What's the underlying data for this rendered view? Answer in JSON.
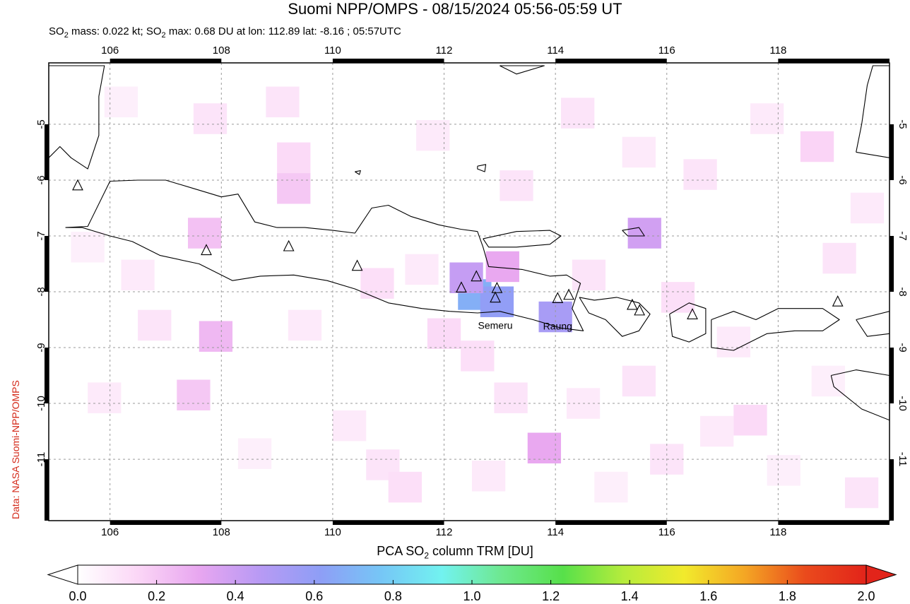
{
  "title": "Suomi NPP/OMPS - 08/15/2024 05:56-05:59 UT",
  "subtitle": {
    "part1": "SO",
    "sub1": "2",
    "part2": " mass: 0.022 kt; SO",
    "sub2": "2",
    "part3": " max: 0.68 DU at lon: 112.89 lat: -8.16 ; 05:57UTC"
  },
  "credit": "Data: NASA Suomi-NPP/OMPS",
  "map": {
    "lon_range": [
      104.9,
      120.0
    ],
    "lat_range": [
      -12.1,
      -3.9
    ],
    "lon_ticks": [
      "106",
      "108",
      "110",
      "112",
      "114",
      "116",
      "118"
    ],
    "lat_ticks": [
      "-5",
      "-6",
      "-7",
      "-8",
      "-9",
      "-10",
      "-11"
    ],
    "grid": true,
    "volcano_labels": [
      {
        "name": "Semeru",
        "lon": 112.92,
        "lat": -8.11
      },
      {
        "name": "Raung",
        "lon": 114.04,
        "lat": -8.12
      }
    ],
    "volcanoes": [
      {
        "lon": 105.42,
        "lat": -6.1
      },
      {
        "lon": 107.73,
        "lat": -7.26
      },
      {
        "lon": 109.21,
        "lat": -7.19
      },
      {
        "lon": 110.44,
        "lat": -7.54
      },
      {
        "lon": 112.31,
        "lat": -7.93
      },
      {
        "lon": 112.58,
        "lat": -7.73
      },
      {
        "lon": 112.95,
        "lat": -7.94
      },
      {
        "lon": 112.92,
        "lat": -8.11
      },
      {
        "lon": 114.04,
        "lat": -8.12
      },
      {
        "lon": 114.24,
        "lat": -8.06
      },
      {
        "lon": 115.38,
        "lat": -8.24
      },
      {
        "lon": 115.51,
        "lat": -8.34
      },
      {
        "lon": 116.46,
        "lat": -8.41
      },
      {
        "lon": 119.07,
        "lat": -8.18
      }
    ],
    "so2_pixels": [
      {
        "lon": 112.55,
        "lat": -8.05,
        "du": 0.68
      },
      {
        "lon": 112.95,
        "lat": -8.18,
        "du": 0.6
      },
      {
        "lon": 114.0,
        "lat": -8.45,
        "du": 0.52
      },
      {
        "lon": 112.4,
        "lat": -7.75,
        "du": 0.42
      },
      {
        "lon": 113.05,
        "lat": -7.55,
        "du": 0.3
      },
      {
        "lon": 115.6,
        "lat": -6.95,
        "du": 0.38
      },
      {
        "lon": 107.7,
        "lat": -6.95,
        "du": 0.22
      },
      {
        "lon": 109.3,
        "lat": -6.15,
        "du": 0.2
      },
      {
        "lon": 107.9,
        "lat": -8.8,
        "du": 0.25
      },
      {
        "lon": 107.5,
        "lat": -9.85,
        "du": 0.2
      },
      {
        "lon": 113.8,
        "lat": -10.8,
        "du": 0.3
      },
      {
        "lon": 112.0,
        "lat": -8.75,
        "du": 0.14
      },
      {
        "lon": 112.6,
        "lat": -9.15,
        "du": 0.12
      },
      {
        "lon": 113.2,
        "lat": -9.9,
        "du": 0.1
      },
      {
        "lon": 110.8,
        "lat": -7.85,
        "du": 0.12
      },
      {
        "lon": 111.6,
        "lat": -7.6,
        "du": 0.08
      },
      {
        "lon": 106.2,
        "lat": -4.6,
        "du": 0.06
      },
      {
        "lon": 107.8,
        "lat": -4.9,
        "du": 0.1
      },
      {
        "lon": 109.1,
        "lat": -4.6,
        "du": 0.1
      },
      {
        "lon": 109.3,
        "lat": -5.6,
        "du": 0.14
      },
      {
        "lon": 111.8,
        "lat": -5.2,
        "du": 0.08
      },
      {
        "lon": 113.3,
        "lat": -6.1,
        "du": 0.1
      },
      {
        "lon": 114.4,
        "lat": -4.8,
        "du": 0.1
      },
      {
        "lon": 115.5,
        "lat": -5.5,
        "du": 0.08
      },
      {
        "lon": 116.6,
        "lat": -5.9,
        "du": 0.1
      },
      {
        "lon": 117.8,
        "lat": -4.9,
        "du": 0.08
      },
      {
        "lon": 118.7,
        "lat": -5.4,
        "du": 0.16
      },
      {
        "lon": 119.1,
        "lat": -7.4,
        "du": 0.1
      },
      {
        "lon": 116.2,
        "lat": -8.1,
        "du": 0.12
      },
      {
        "lon": 114.6,
        "lat": -7.7,
        "du": 0.1
      },
      {
        "lon": 105.9,
        "lat": -9.9,
        "du": 0.08
      },
      {
        "lon": 106.8,
        "lat": -8.6,
        "du": 0.1
      },
      {
        "lon": 109.5,
        "lat": -8.6,
        "du": 0.08
      },
      {
        "lon": 110.3,
        "lat": -10.4,
        "du": 0.08
      },
      {
        "lon": 110.9,
        "lat": -11.1,
        "du": 0.1
      },
      {
        "lon": 111.3,
        "lat": -11.5,
        "du": 0.12
      },
      {
        "lon": 112.8,
        "lat": -11.3,
        "du": 0.08
      },
      {
        "lon": 114.5,
        "lat": -10.0,
        "du": 0.08
      },
      {
        "lon": 115.5,
        "lat": -9.6,
        "du": 0.1
      },
      {
        "lon": 116.9,
        "lat": -10.5,
        "du": 0.08
      },
      {
        "lon": 117.5,
        "lat": -10.3,
        "du": 0.14
      },
      {
        "lon": 118.1,
        "lat": -11.2,
        "du": 0.06
      },
      {
        "lon": 119.5,
        "lat": -11.6,
        "du": 0.1
      },
      {
        "lon": 118.9,
        "lat": -9.6,
        "du": 0.06
      },
      {
        "lon": 117.2,
        "lat": -8.9,
        "du": 0.08
      },
      {
        "lon": 119.6,
        "lat": -6.5,
        "du": 0.08
      },
      {
        "lon": 106.5,
        "lat": -7.7,
        "du": 0.08
      },
      {
        "lon": 105.6,
        "lat": -7.2,
        "du": 0.06
      },
      {
        "lon": 108.6,
        "lat": -10.9,
        "du": 0.06
      },
      {
        "lon": 115.0,
        "lat": -11.5,
        "du": 0.06
      },
      {
        "lon": 116.0,
        "lat": -11.0,
        "du": 0.1
      }
    ],
    "coastlines": {
      "java": [
        [
          105.2,
          -6.85
        ],
        [
          105.6,
          -6.83
        ],
        [
          106.0,
          -6.02
        ],
        [
          106.5,
          -6.0
        ],
        [
          107.0,
          -6.0
        ],
        [
          107.5,
          -6.15
        ],
        [
          108.0,
          -6.3
        ],
        [
          108.3,
          -6.25
        ],
        [
          108.6,
          -6.75
        ],
        [
          109.0,
          -6.85
        ],
        [
          109.5,
          -6.85
        ],
        [
          110.0,
          -6.9
        ],
        [
          110.4,
          -6.95
        ],
        [
          110.7,
          -6.5
        ],
        [
          111.0,
          -6.45
        ],
        [
          111.4,
          -6.65
        ],
        [
          111.9,
          -6.8
        ],
        [
          112.3,
          -6.88
        ],
        [
          112.6,
          -6.92
        ],
        [
          112.7,
          -7.2
        ],
        [
          112.8,
          -7.55
        ],
        [
          113.4,
          -7.6
        ],
        [
          113.9,
          -7.72
        ],
        [
          114.2,
          -7.7
        ],
        [
          114.45,
          -7.85
        ],
        [
          114.3,
          -8.3
        ],
        [
          114.5,
          -8.7
        ],
        [
          114.1,
          -8.65
        ],
        [
          113.6,
          -8.5
        ],
        [
          113.0,
          -8.35
        ],
        [
          112.6,
          -8.38
        ],
        [
          112.1,
          -8.35
        ],
        [
          111.6,
          -8.3
        ],
        [
          111.0,
          -8.2
        ],
        [
          110.4,
          -7.95
        ],
        [
          109.9,
          -7.8
        ],
        [
          109.3,
          -7.7
        ],
        [
          108.7,
          -7.72
        ],
        [
          108.2,
          -7.8
        ],
        [
          107.6,
          -7.5
        ],
        [
          106.9,
          -7.35
        ],
        [
          106.4,
          -7.1
        ],
        [
          106.0,
          -7.0
        ],
        [
          105.5,
          -6.85
        ],
        [
          105.2,
          -6.85
        ]
      ],
      "madura": [
        [
          112.7,
          -7.05
        ],
        [
          113.3,
          -6.92
        ],
        [
          113.9,
          -6.9
        ],
        [
          114.1,
          -7.0
        ],
        [
          113.9,
          -7.15
        ],
        [
          113.3,
          -7.2
        ],
        [
          112.8,
          -7.2
        ],
        [
          112.7,
          -7.05
        ]
      ],
      "bali": [
        [
          114.43,
          -8.1
        ],
        [
          114.7,
          -8.15
        ],
        [
          115.1,
          -8.1
        ],
        [
          115.5,
          -8.2
        ],
        [
          115.7,
          -8.4
        ],
        [
          115.5,
          -8.7
        ],
        [
          115.2,
          -8.8
        ],
        [
          114.9,
          -8.5
        ],
        [
          114.6,
          -8.38
        ],
        [
          114.43,
          -8.1
        ]
      ],
      "lombok": [
        [
          116.05,
          -8.4
        ],
        [
          116.4,
          -8.2
        ],
        [
          116.7,
          -8.3
        ],
        [
          116.7,
          -8.75
        ],
        [
          116.4,
          -8.9
        ],
        [
          116.1,
          -8.8
        ],
        [
          116.05,
          -8.4
        ]
      ],
      "sumbawa": [
        [
          116.8,
          -8.5
        ],
        [
          117.2,
          -8.35
        ],
        [
          117.6,
          -8.5
        ],
        [
          118.0,
          -8.3
        ],
        [
          118.4,
          -8.3
        ],
        [
          118.8,
          -8.3
        ],
        [
          119.1,
          -8.5
        ],
        [
          118.8,
          -8.7
        ],
        [
          118.3,
          -8.7
        ],
        [
          117.8,
          -8.75
        ],
        [
          117.2,
          -9.05
        ],
        [
          116.8,
          -9.0
        ],
        [
          116.8,
          -8.5
        ]
      ],
      "sumatra": [
        [
          104.9,
          -5.6
        ],
        [
          105.1,
          -5.4
        ],
        [
          105.3,
          -5.6
        ],
        [
          105.6,
          -5.8
        ],
        [
          105.8,
          -5.2
        ],
        [
          105.8,
          -4.5
        ],
        [
          105.9,
          -3.95
        ],
        [
          104.9,
          -3.95
        ],
        [
          104.9,
          -5.6
        ]
      ],
      "borneo": [
        [
          113.0,
          -3.95
        ],
        [
          113.3,
          -4.1
        ],
        [
          113.8,
          -3.95
        ],
        [
          113.0,
          -3.95
        ]
      ],
      "sulawesi": [
        [
          119.4,
          -5.5
        ],
        [
          119.5,
          -5.0
        ],
        [
          119.6,
          -4.3
        ],
        [
          119.7,
          -3.95
        ],
        [
          120.0,
          -3.95
        ],
        [
          120.0,
          -5.6
        ],
        [
          119.4,
          -5.5
        ]
      ],
      "sumba": [
        [
          118.95,
          -9.5
        ],
        [
          119.4,
          -9.4
        ],
        [
          120.0,
          -9.5
        ],
        [
          120.0,
          -10.3
        ],
        [
          119.5,
          -10.1
        ],
        [
          119.0,
          -9.7
        ],
        [
          118.95,
          -9.5
        ]
      ],
      "bawean": [
        [
          112.6,
          -5.75
        ],
        [
          112.75,
          -5.72
        ],
        [
          112.73,
          -5.85
        ],
        [
          112.6,
          -5.8
        ],
        [
          112.6,
          -5.75
        ]
      ],
      "kangean": [
        [
          115.2,
          -6.9
        ],
        [
          115.5,
          -6.85
        ],
        [
          115.6,
          -7.0
        ],
        [
          115.3,
          -7.0
        ],
        [
          115.2,
          -6.9
        ]
      ],
      "karimunjawa": [
        [
          110.4,
          -5.85
        ],
        [
          110.5,
          -5.83
        ],
        [
          110.48,
          -5.9
        ],
        [
          110.4,
          -5.85
        ]
      ],
      "flores": [
        [
          119.4,
          -8.5
        ],
        [
          120.0,
          -8.35
        ],
        [
          120.0,
          -8.75
        ],
        [
          119.6,
          -8.8
        ],
        [
          119.4,
          -8.5
        ]
      ]
    },
    "colorbar": {
      "title_main": "PCA SO",
      "title_sub": "2",
      "title_rest": " column TRM [DU]",
      "tick_labels": [
        "0.0",
        "0.2",
        "0.4",
        "0.6",
        "0.8",
        "1.0",
        "1.2",
        "1.4",
        "1.6",
        "1.8",
        "2.0"
      ],
      "range": [
        0.0,
        2.0
      ],
      "colors": [
        "#ffffff",
        "#fbd6f6",
        "#e8a6f0",
        "#b89af4",
        "#8e9ef6",
        "#76c6f6",
        "#72f2f0",
        "#6ee88e",
        "#57e04a",
        "#b6ec3c",
        "#f2ea2c",
        "#f4a624",
        "#ea4a1c",
        "#e2241a"
      ]
    }
  }
}
